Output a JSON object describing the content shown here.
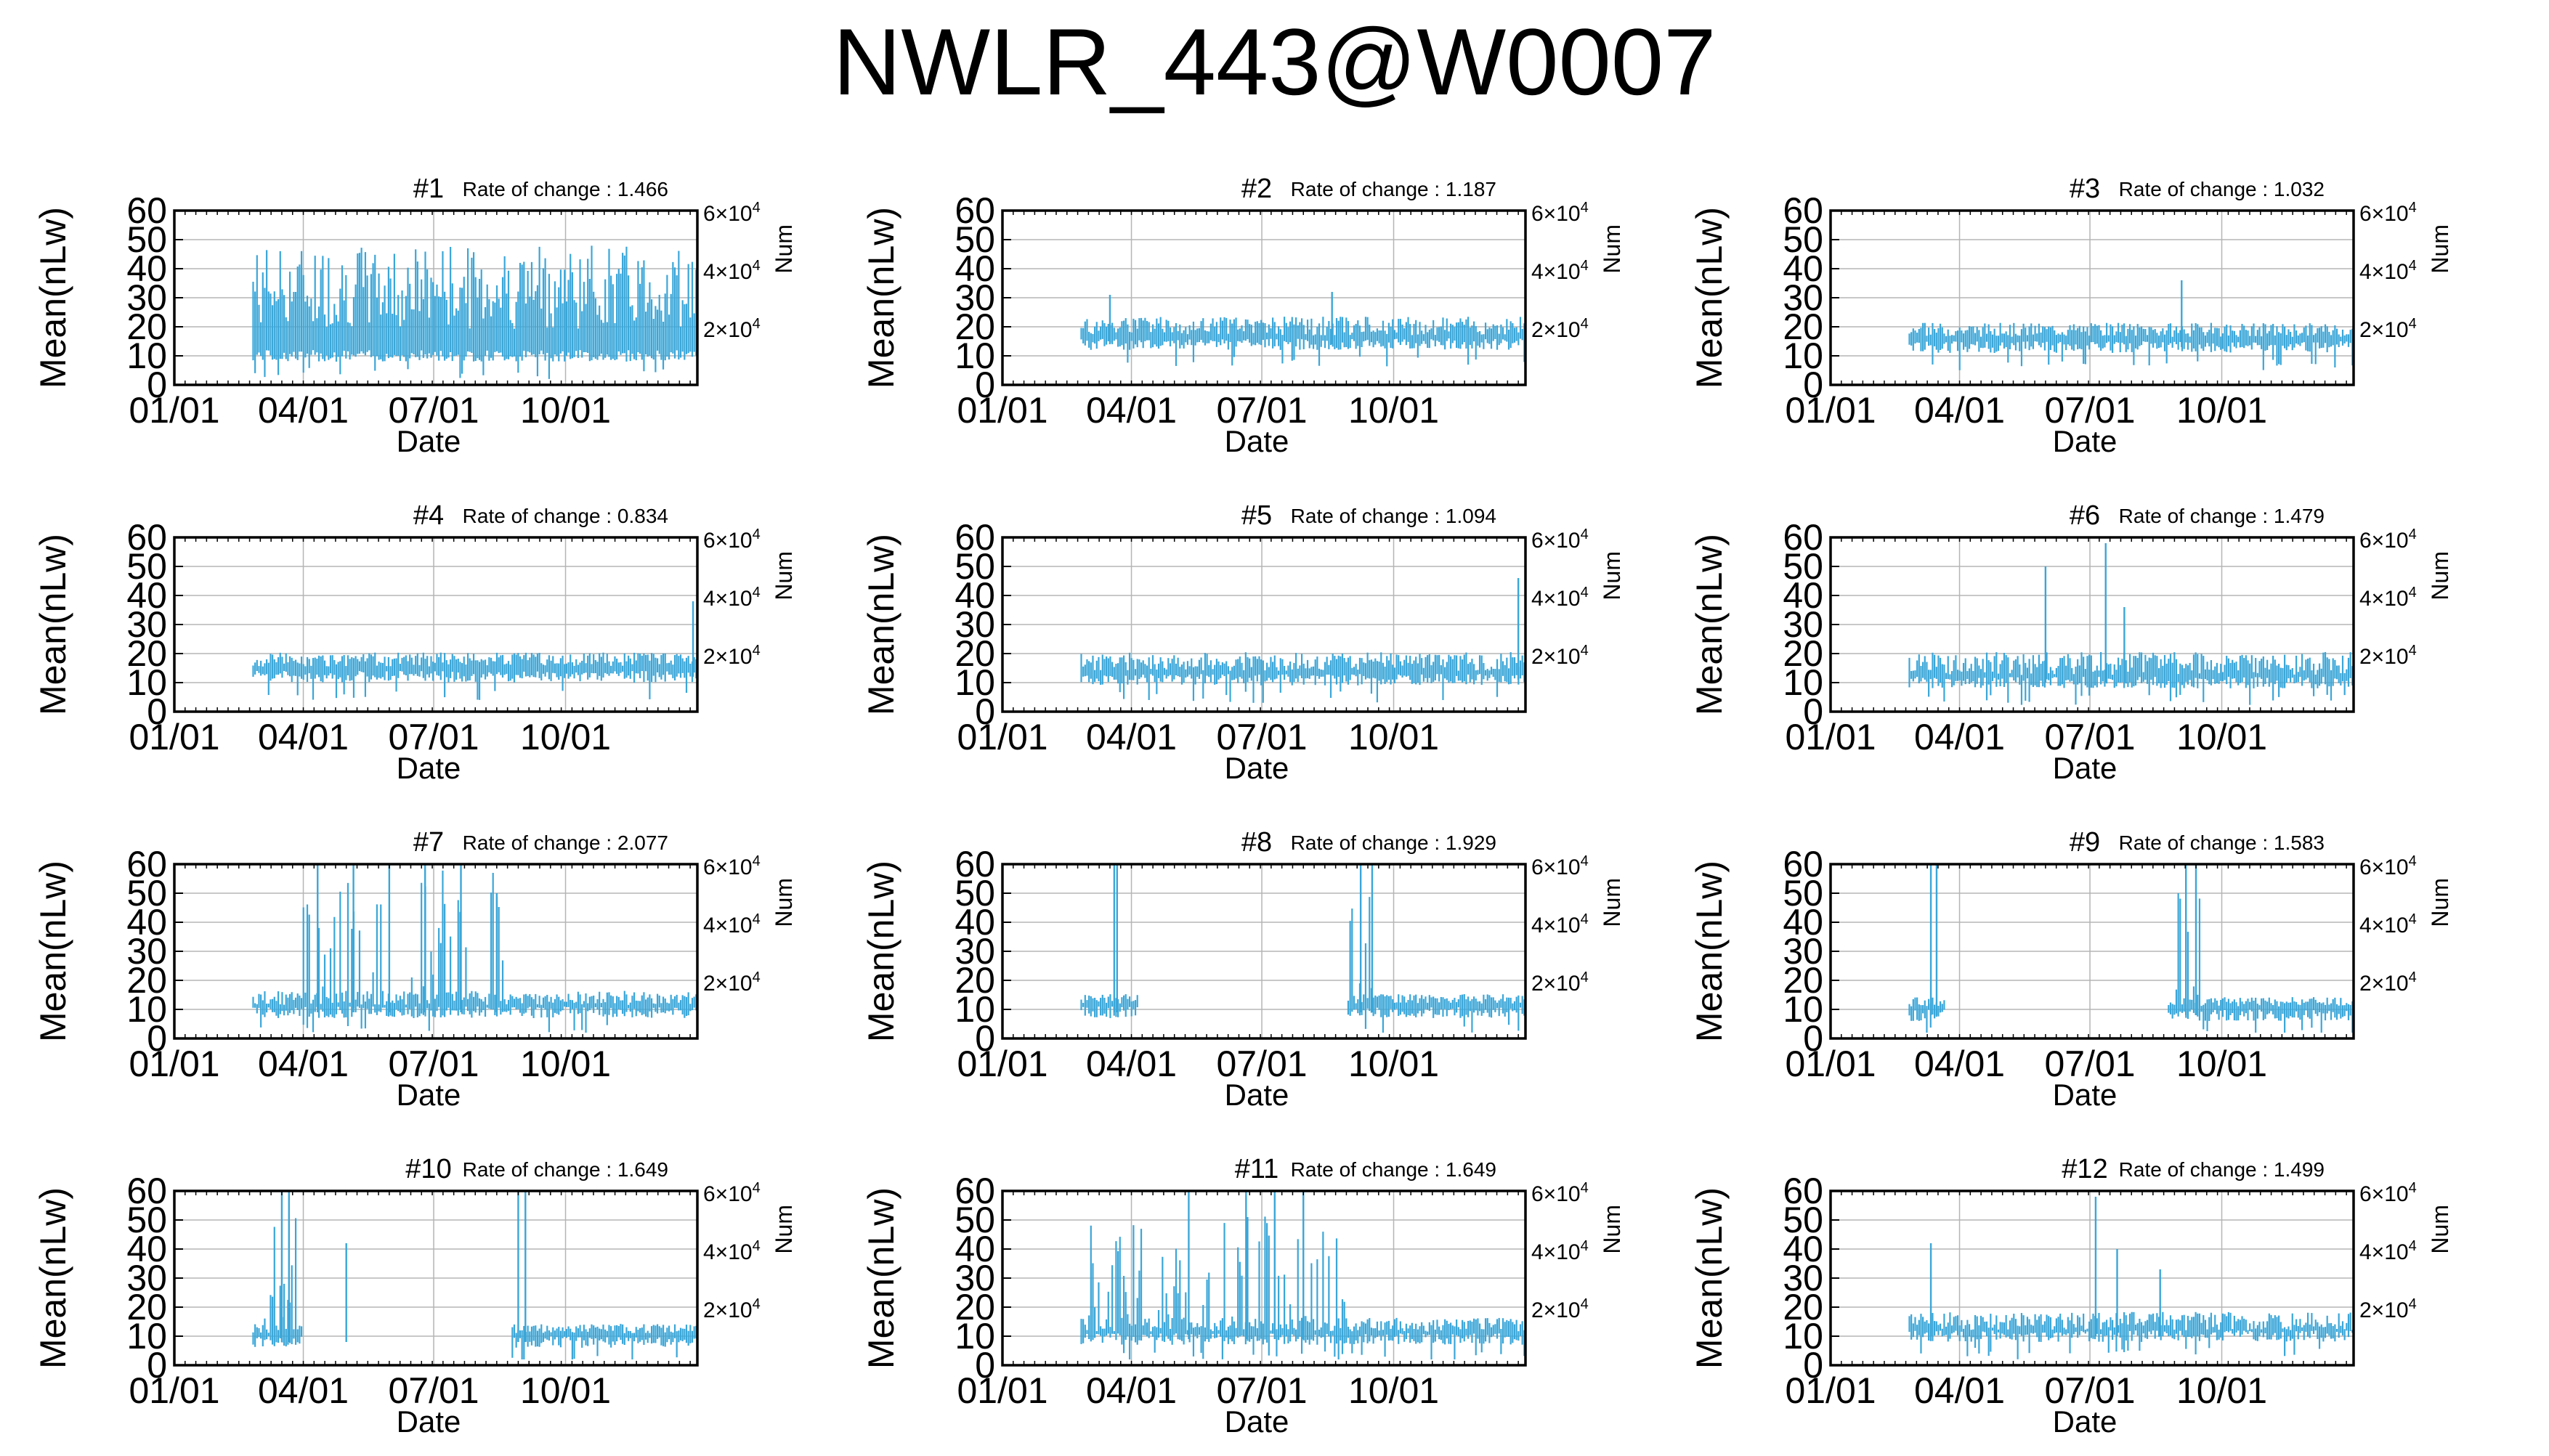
{
  "title": "NWLR_443@W0007",
  "colors": {
    "series": "#3aa6d8",
    "grid": "#b5b5b5",
    "axis": "#000000"
  },
  "chart_template": {
    "type": "bar",
    "xlabel": "Date",
    "ylabel": "Mean(nLw)",
    "y2label": "Num",
    "xticks": [
      "01/01",
      "04/01",
      "07/01",
      "10/01"
    ],
    "xtick_days": [
      0,
      90,
      181,
      273
    ],
    "xlim_days": [
      0,
      365
    ],
    "ylim": [
      0,
      60
    ],
    "yticks": [
      0,
      10,
      20,
      30,
      40,
      50,
      60
    ],
    "y2ticks": [
      {
        "value": 20000,
        "base": "2×10",
        "exp": "4"
      },
      {
        "value": 40000,
        "base": "4×10",
        "exp": "4"
      },
      {
        "value": 60000,
        "base": "6×10",
        "exp": "4"
      }
    ],
    "grid": true,
    "rate_label": "Rate of change :"
  },
  "chart_data": [
    {
      "type": "bar",
      "title": "#1",
      "rate": "1.466",
      "profile": {
        "start": 55,
        "end": 365,
        "base": 28,
        "spread": 18,
        "low": 10,
        "spikes": []
      }
    },
    {
      "type": "bar",
      "title": "#2",
      "rate": "1.187",
      "profile": {
        "start": 55,
        "end": 365,
        "base": 19,
        "spread": 4,
        "low": 14,
        "spikes": [
          [
            75,
            31
          ],
          [
            230,
            32
          ]
        ]
      }
    },
    {
      "type": "bar",
      "title": "#3",
      "rate": "1.032",
      "profile": {
        "start": 55,
        "end": 365,
        "base": 18,
        "spread": 3,
        "low": 13,
        "spikes": [
          [
            245,
            36
          ]
        ]
      }
    },
    {
      "type": "bar",
      "title": "#4",
      "rate": "0.834",
      "profile": {
        "start": 55,
        "end": 365,
        "base": 17,
        "spread": 3,
        "low": 12,
        "spikes": [
          [
            362,
            38
          ]
        ]
      }
    },
    {
      "type": "bar",
      "title": "#5",
      "rate": "1.094",
      "profile": {
        "start": 55,
        "end": 365,
        "base": 16,
        "spread": 4,
        "low": 11,
        "spikes": [
          [
            360,
            46
          ]
        ]
      }
    },
    {
      "type": "bar",
      "title": "#6",
      "rate": "1.479",
      "profile": {
        "start": 55,
        "end": 365,
        "base": 15,
        "spread": 5,
        "low": 10,
        "spikes": [
          [
            150,
            50
          ],
          [
            192,
            58
          ],
          [
            205,
            36
          ]
        ]
      }
    },
    {
      "type": "bar",
      "title": "#7",
      "rate": "2.077",
      "profile": {
        "start": 55,
        "end": 365,
        "base": 13,
        "spread": 3,
        "low": 9,
        "spikes": [
          [
            100,
            60
          ],
          [
            125,
            60
          ],
          [
            150,
            60
          ],
          [
            175,
            60
          ],
          [
            200,
            60
          ],
          [
            225,
            50
          ]
        ],
        "burst": [
          90,
          230,
          45
        ]
      }
    },
    {
      "type": "bar",
      "title": "#8",
      "rate": "1.929",
      "profile": {
        "start": 55,
        "end": 365,
        "base": 13,
        "spread": 2,
        "low": 9,
        "spikes": [
          [
            78,
            60
          ],
          [
            80,
            60
          ],
          [
            250,
            60
          ],
          [
            258,
            60
          ]
        ],
        "gaps": [
          [
            95,
            240
          ]
        ],
        "burst": [
          240,
          265,
          40
        ]
      }
    },
    {
      "type": "bar",
      "title": "#9",
      "rate": "1.583",
      "profile": {
        "start": 55,
        "end": 365,
        "base": 12,
        "spread": 2,
        "low": 8,
        "spikes": [
          [
            70,
            60
          ],
          [
            74,
            60
          ],
          [
            248,
            60
          ],
          [
            255,
            60
          ]
        ],
        "gaps": [
          [
            80,
            235
          ]
        ],
        "burst": [
          235,
          260,
          45
        ]
      }
    },
    {
      "type": "bar",
      "title": "#10",
      "rate": "1.649",
      "profile": {
        "start": 55,
        "end": 365,
        "base": 12,
        "spread": 2,
        "low": 8,
        "spikes": [
          [
            75,
            60
          ],
          [
            80,
            60
          ],
          [
            120,
            42
          ],
          [
            240,
            60
          ],
          [
            245,
            60
          ]
        ],
        "gaps": [
          [
            90,
            235
          ]
        ],
        "burst": [
          60,
          85,
          45
        ]
      }
    },
    {
      "type": "bar",
      "title": "#11",
      "rate": "1.649",
      "profile": {
        "start": 55,
        "end": 365,
        "base": 13,
        "spread": 3,
        "low": 9,
        "spikes": [
          [
            130,
            60
          ],
          [
            170,
            60
          ],
          [
            190,
            60
          ],
          [
            210,
            60
          ]
        ],
        "burst": [
          60,
          240,
          40
        ]
      }
    },
    {
      "type": "bar",
      "title": "#12",
      "rate": "1.499",
      "profile": {
        "start": 55,
        "end": 365,
        "base": 14,
        "spread": 4,
        "low": 10,
        "spikes": [
          [
            70,
            42
          ],
          [
            185,
            58
          ],
          [
            200,
            40
          ],
          [
            230,
            33
          ]
        ]
      }
    }
  ]
}
